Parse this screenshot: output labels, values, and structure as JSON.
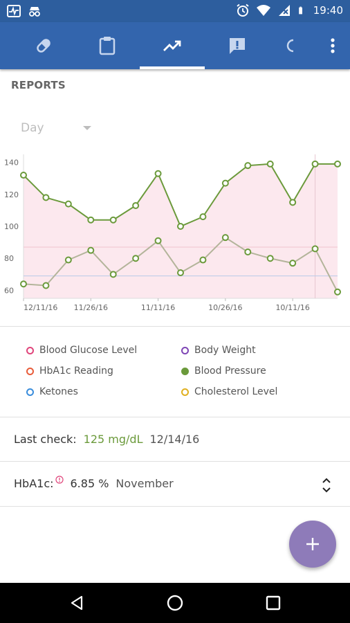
{
  "status_bar": {
    "time": "19:40"
  },
  "icons": {
    "status_left": [
      "activity-icon",
      "incognito-icon"
    ],
    "status_right": [
      "alarm-icon",
      "wifi-icon",
      "signal-icon",
      "battery-icon"
    ],
    "tabs": [
      "pill-icon",
      "clipboard-icon",
      "trending-icon",
      "alert-icon",
      "half-visible-icon"
    ],
    "menu": "more-vertical-icon",
    "nav": [
      "back-icon",
      "home-icon",
      "recents-icon"
    ],
    "fab": "plus-icon"
  },
  "active_tab_index": 2,
  "section_title": "REPORTS",
  "period": {
    "selected": "Day"
  },
  "chart_data": {
    "type": "line",
    "x_tick_labels": [
      "12/11/16",
      "11/26/16",
      "11/11/16",
      "10/26/16",
      "10/11/16"
    ],
    "yticks": [
      60,
      80,
      100,
      120,
      140
    ],
    "ylim": [
      55,
      145
    ],
    "reference_lines": [
      87,
      69
    ],
    "grid": false,
    "series": [
      {
        "name": "Blood Pressure",
        "color": "#6b9a3b",
        "values": [
          132,
          118,
          114,
          104,
          104,
          113,
          133,
          100,
          106,
          127,
          138,
          139,
          115,
          139,
          139
        ]
      },
      {
        "name": "",
        "color": "#6b9a3b",
        "values": [
          64,
          63,
          79,
          85,
          70,
          80,
          91,
          71,
          79,
          93,
          84,
          80,
          77,
          86,
          59
        ]
      }
    ]
  },
  "legend": [
    {
      "label": "Blood Glucose Level",
      "color": "#e0457b",
      "filled": false
    },
    {
      "label": "Body Weight",
      "color": "#7e45b5",
      "filled": false
    },
    {
      "label": "HbA1c Reading",
      "color": "#e85c3a",
      "filled": false
    },
    {
      "label": "Blood Pressure",
      "color": "#6b9a3b",
      "filled": true
    },
    {
      "label": "Ketones",
      "color": "#3a8ddc",
      "filled": false
    },
    {
      "label": "Cholesterol Level",
      "color": "#e0b020",
      "filled": false
    }
  ],
  "last_check": {
    "label": "Last check:",
    "value": "125 mg/dL",
    "date": "12/14/16"
  },
  "hba1c": {
    "label": "HbA1c:",
    "value": "6.85 %",
    "month": "November"
  },
  "colors": {
    "status_bar": "#2d5e9e",
    "tab_bar": "#3365ad",
    "fab": "#8e7bb9",
    "accent_green": "#6b9a3b",
    "chart_fill": "#fce8ee"
  }
}
